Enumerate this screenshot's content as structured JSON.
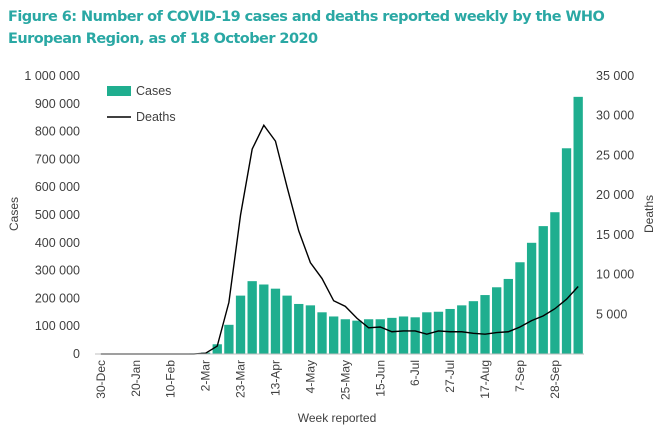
{
  "title": "Figure 6: Number of COVID-19 cases and deaths reported weekly by the WHO European Region, as of 18 October 2020",
  "colors": {
    "title": "#2aa8a4",
    "cases": "#1fae8f",
    "deaths": "#000000",
    "text": "#404040"
  },
  "chart_data": {
    "type": "bar",
    "xlabel": "Week reported",
    "ylabel": "Cases",
    "y2label": "Deaths",
    "ylim": [
      0,
      1000000
    ],
    "y2lim": [
      0,
      35000
    ],
    "yticks": [
      "0",
      "100 000",
      "200 000",
      "300 000",
      "400 000",
      "500 000",
      "600 000",
      "700 000",
      "800 000",
      "900 000",
      "1 000 000"
    ],
    "y2ticks": [
      "5 000",
      "10 000",
      "15 000",
      "20 000",
      "25 000",
      "30 000",
      "35 000"
    ],
    "xtick_labels": [
      "30-Dec",
      "20-Jan",
      "10-Feb",
      "2-Mar",
      "23-Mar",
      "13-Apr",
      "4-May",
      "25-May",
      "15-Jun",
      "6-Jul",
      "27-Jul",
      "17-Aug",
      "7-Sep",
      "28-Sep"
    ],
    "legend_position": "top-left",
    "categories": [
      "30-Dec",
      "6-Jan",
      "13-Jan",
      "20-Jan",
      "27-Jan",
      "3-Feb",
      "10-Feb",
      "17-Feb",
      "24-Feb",
      "2-Mar",
      "9-Mar",
      "16-Mar",
      "23-Mar",
      "30-Mar",
      "6-Apr",
      "13-Apr",
      "20-Apr",
      "27-Apr",
      "4-May",
      "11-May",
      "18-May",
      "25-May",
      "1-Jun",
      "8-Jun",
      "15-Jun",
      "22-Jun",
      "29-Jun",
      "6-Jul",
      "13-Jul",
      "20-Jul",
      "27-Jul",
      "3-Aug",
      "10-Aug",
      "17-Aug",
      "24-Aug",
      "31-Aug",
      "7-Sep",
      "14-Sep",
      "21-Sep",
      "28-Sep",
      "5-Oct",
      "12-Oct"
    ],
    "series": [
      {
        "name": "Cases",
        "type": "bar",
        "axis": "left",
        "values": [
          0,
          0,
          0,
          0,
          0,
          0,
          0,
          0,
          2000,
          5000,
          35000,
          105000,
          210000,
          262000,
          250000,
          235000,
          210000,
          180000,
          175000,
          150000,
          135000,
          125000,
          120000,
          125000,
          125000,
          130000,
          135000,
          132000,
          150000,
          152000,
          162000,
          175000,
          190000,
          212000,
          240000,
          270000,
          330000,
          400000,
          460000,
          510000,
          740000,
          925000
        ]
      },
      {
        "name": "Deaths",
        "type": "line",
        "axis": "right",
        "values": [
          0,
          0,
          0,
          0,
          0,
          0,
          0,
          0,
          0,
          100,
          1000,
          6500,
          17500,
          25800,
          28800,
          26800,
          21000,
          15500,
          11500,
          9500,
          6700,
          6000,
          4500,
          3300,
          3400,
          2800,
          2900,
          2900,
          2500,
          2900,
          2800,
          2800,
          2600,
          2500,
          2700,
          2800,
          3400,
          4200,
          4800,
          5700,
          6900,
          8500
        ]
      }
    ]
  }
}
